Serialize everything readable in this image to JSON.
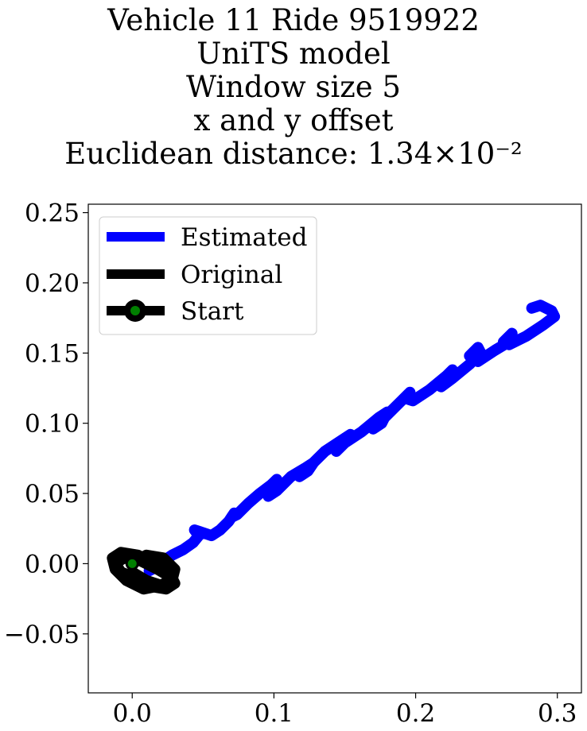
{
  "chart_data": {
    "type": "line",
    "title_lines": [
      "Vehicle 11 Ride 9519922",
      "UniTS model",
      "Window size 5",
      "x and y offset",
      "Euclidean distance: 1.34×10⁻²"
    ],
    "xlabel": "",
    "ylabel": "",
    "xlim": [
      -0.031,
      0.317
    ],
    "ylim": [
      -0.092,
      0.256
    ],
    "xticks": [
      0.0,
      0.1,
      0.2,
      0.3
    ],
    "xtick_labels": [
      "0.0",
      "0.1",
      "0.2",
      "0.3"
    ],
    "yticks": [
      -0.05,
      0.0,
      0.05,
      0.1,
      0.15,
      0.2,
      0.25
    ],
    "ytick_labels": [
      "−0.05",
      "0.00",
      "0.05",
      "0.10",
      "0.15",
      "0.20",
      "0.25"
    ],
    "grid": false,
    "legend_position": "top-left",
    "series": [
      {
        "name": "Estimated",
        "color": "#0000ff",
        "x": [
          0.012,
          0.018,
          0.022,
          0.028,
          0.036,
          0.043,
          0.047,
          0.044,
          0.05,
          0.056,
          0.062,
          0.068,
          0.072,
          0.07,
          0.074,
          0.082,
          0.09,
          0.098,
          0.102,
          0.098,
          0.096,
          0.102,
          0.112,
          0.122,
          0.128,
          0.124,
          0.118,
          0.124,
          0.136,
          0.148,
          0.154,
          0.148,
          0.144,
          0.15,
          0.162,
          0.174,
          0.18,
          0.176,
          0.17,
          0.178,
          0.19,
          0.196,
          0.192,
          0.198,
          0.21,
          0.222,
          0.226,
          0.22,
          0.218,
          0.226,
          0.238,
          0.246,
          0.244,
          0.238,
          0.244,
          0.256,
          0.266,
          0.268,
          0.262,
          0.266,
          0.278,
          0.29,
          0.298,
          0.296,
          0.288,
          0.282
        ],
        "y": [
          -0.005,
          -0.002,
          0.002,
          0.006,
          0.01,
          0.015,
          0.02,
          0.024,
          0.022,
          0.02,
          0.024,
          0.03,
          0.036,
          0.033,
          0.035,
          0.043,
          0.05,
          0.056,
          0.06,
          0.054,
          0.048,
          0.052,
          0.062,
          0.068,
          0.072,
          0.066,
          0.062,
          0.068,
          0.08,
          0.088,
          0.092,
          0.084,
          0.08,
          0.086,
          0.094,
          0.104,
          0.108,
          0.1,
          0.096,
          0.104,
          0.116,
          0.122,
          0.118,
          0.116,
          0.124,
          0.134,
          0.138,
          0.13,
          0.126,
          0.132,
          0.142,
          0.15,
          0.154,
          0.148,
          0.144,
          0.152,
          0.158,
          0.164,
          0.158,
          0.156,
          0.162,
          0.17,
          0.176,
          0.18,
          0.184,
          0.182
        ]
      },
      {
        "name": "Original",
        "color": "#000000",
        "x": [
          0.0,
          0.01,
          0.022,
          0.03,
          0.028,
          0.018,
          0.008,
          -0.004,
          -0.012,
          -0.014,
          -0.008,
          0.004,
          0.016,
          0.026,
          0.03,
          0.024,
          0.012,
          0.002,
          -0.008,
          -0.012,
          -0.006,
          0.006,
          0.018,
          0.028,
          0.022,
          0.01,
          0.0
        ],
        "y": [
          0.0,
          0.006,
          0.004,
          -0.004,
          -0.012,
          -0.016,
          -0.018,
          -0.012,
          -0.004,
          0.004,
          0.008,
          0.006,
          0.0,
          -0.006,
          -0.014,
          -0.018,
          -0.016,
          -0.01,
          -0.006,
          0.0,
          0.004,
          0.002,
          -0.004,
          -0.01,
          -0.016,
          -0.012,
          -0.006
        ]
      }
    ],
    "start": {
      "name": "Start",
      "x": 0.0,
      "y": 0.0,
      "edge_color": "#000000",
      "face_color": "#008000"
    }
  }
}
